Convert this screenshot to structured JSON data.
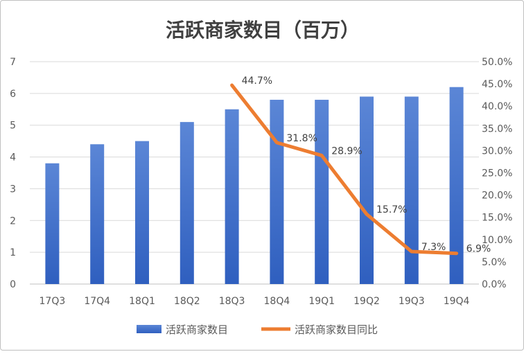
{
  "chart_data": {
    "type": "bar",
    "title": "活跃商家数目（百万）",
    "categories": [
      "17Q3",
      "17Q4",
      "18Q1",
      "18Q2",
      "18Q3",
      "18Q4",
      "19Q1",
      "19Q2",
      "19Q3",
      "19Q4"
    ],
    "series": [
      {
        "name": "活跃商家数目",
        "type": "bar",
        "axis": "left",
        "values": [
          3.8,
          4.4,
          4.5,
          5.1,
          5.5,
          5.8,
          5.8,
          5.9,
          5.9,
          6.2
        ]
      },
      {
        "name": "活跃商家数目同比",
        "type": "line",
        "axis": "right",
        "values": [
          null,
          null,
          null,
          null,
          44.7,
          31.8,
          28.9,
          15.7,
          7.3,
          6.9
        ],
        "labels": [
          "",
          "",
          "",
          "",
          "44.7%",
          "31.8%",
          "28.9%",
          "15.7%",
          "7.3%",
          "6.9%"
        ]
      }
    ],
    "y_left": {
      "min": 0,
      "max": 7,
      "ticks": [
        "0",
        "1",
        "2",
        "3",
        "4",
        "5",
        "6",
        "7"
      ]
    },
    "y_right": {
      "min": 0,
      "max": 50,
      "ticks": [
        "0.0%",
        "5.0%",
        "10.0%",
        "15.0%",
        "20.0%",
        "25.0%",
        "30.0%",
        "35.0%",
        "40.0%",
        "45.0%",
        "50.0%"
      ]
    },
    "grid": true,
    "legend": "bottom",
    "colors": {
      "bar": "#4472c4",
      "line": "#ed7d31"
    }
  }
}
